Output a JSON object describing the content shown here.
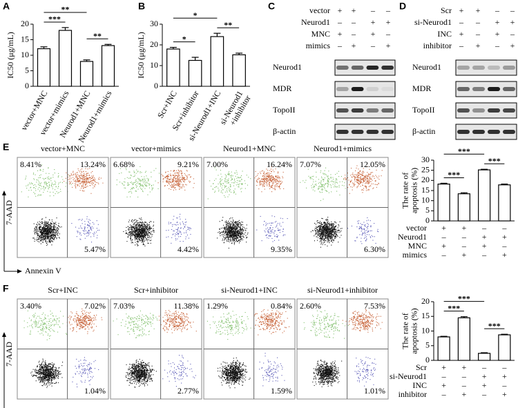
{
  "chart_data": [
    {
      "type": "bar",
      "letter": "A",
      "y_label": [
        "IC50 (μg/mL)"
      ],
      "categories": [
        "vector+MNC",
        "vector+mimics",
        "Neurod1+MNC",
        "Neurod1+mimics"
      ],
      "values": [
        12.1,
        18.0,
        8.0,
        13.1
      ],
      "errors": [
        0.6,
        0.9,
        0.5,
        0.4
      ],
      "ylim": [
        0,
        20
      ],
      "yticks": [
        0,
        5,
        10,
        15,
        20
      ],
      "comparisons": [
        {
          "between": [
            0,
            1
          ],
          "label": "***"
        },
        {
          "between": [
            2,
            3
          ],
          "label": "**"
        },
        {
          "between": [
            0,
            2
          ],
          "label": "**"
        }
      ]
    },
    {
      "type": "bar",
      "letter": "B",
      "y_label": [
        "IC50 (μg/mL)"
      ],
      "categories": [
        "Scr+INC",
        "Scr+inhibitor",
        "si-Neurod1+INC",
        "si-Neurod1\n+inhibitor"
      ],
      "values": [
        18.0,
        12.5,
        24.0,
        15.2
      ],
      "errors": [
        0.8,
        1.5,
        1.6,
        0.8
      ],
      "ylim": [
        0,
        30
      ],
      "yticks": [
        0,
        10,
        20,
        30
      ],
      "comparisons": [
        {
          "between": [
            0,
            1
          ],
          "label": "*"
        },
        {
          "between": [
            2,
            3
          ],
          "label": "**"
        },
        {
          "between": [
            0,
            2
          ],
          "label": "*"
        }
      ]
    },
    {
      "type": "bar",
      "y_label": [
        "The rate of",
        "apoptosis (%)"
      ],
      "conditions": [
        {
          "name": "vector",
          "signs": [
            "+",
            "+",
            "–",
            "–"
          ]
        },
        {
          "name": "Neurod1",
          "signs": [
            "–",
            "–",
            "+",
            "+"
          ]
        },
        {
          "name": "MNC",
          "signs": [
            "+",
            "–",
            "+",
            "–"
          ]
        },
        {
          "name": "mimics",
          "signs": [
            "–",
            "+",
            "–",
            "+"
          ]
        }
      ],
      "values": [
        18.2,
        13.4,
        25.2,
        17.8
      ],
      "errors": [
        0.4,
        0.5,
        0.3,
        0.4
      ],
      "ylim": [
        0,
        30
      ],
      "yticks": [
        0,
        5,
        10,
        15,
        20,
        25,
        30
      ],
      "comparisons": [
        {
          "between": [
            0,
            1
          ],
          "label": "***"
        },
        {
          "between": [
            2,
            3
          ],
          "label": "***"
        },
        {
          "between": [
            0,
            2
          ],
          "label": "***"
        }
      ]
    },
    {
      "type": "bar",
      "y_label": [
        "The rate of",
        "apoptosis (%)"
      ],
      "conditions": [
        {
          "name": "Scr",
          "signs": [
            "+",
            "+",
            "–",
            "–"
          ]
        },
        {
          "name": "si-Neurod1",
          "signs": [
            "–",
            "–",
            "+",
            "+"
          ]
        },
        {
          "name": "INC",
          "signs": [
            "+",
            "–",
            "+",
            "–"
          ]
        },
        {
          "name": "inhibitor",
          "signs": [
            "–",
            "+",
            "–",
            "+"
          ]
        }
      ],
      "values": [
        8.0,
        14.5,
        2.4,
        8.7
      ],
      "errors": [
        0.2,
        0.4,
        0.2,
        0.2
      ],
      "ylim": [
        0,
        20
      ],
      "yticks": [
        0,
        5,
        10,
        15,
        20
      ],
      "comparisons": [
        {
          "between": [
            0,
            1
          ],
          "label": "***"
        },
        {
          "between": [
            2,
            3
          ],
          "label": "***"
        },
        {
          "between": [
            0,
            2
          ],
          "label": "***"
        }
      ]
    }
  ],
  "blots": [
    {
      "letter": "C",
      "conditions": [
        {
          "name": "vector",
          "signs": [
            "+",
            "+",
            "–",
            "–"
          ]
        },
        {
          "name": "Neurod1",
          "signs": [
            "–",
            "–",
            "+",
            "+"
          ]
        },
        {
          "name": "MNC",
          "signs": [
            "+",
            "–",
            "+",
            "–"
          ]
        },
        {
          "name": "mimics",
          "signs": [
            "–",
            "+",
            "–",
            "+"
          ]
        }
      ],
      "proteins": [
        "Neurod1",
        "MDR",
        "TopoII",
        "β-actin"
      ]
    },
    {
      "letter": "D",
      "conditions": [
        {
          "name": "Scr",
          "signs": [
            "+",
            "+",
            "–",
            "–"
          ]
        },
        {
          "name": "si-Neurod1",
          "signs": [
            "–",
            "–",
            "+",
            "+"
          ]
        },
        {
          "name": "INC",
          "signs": [
            "+",
            "–",
            "+",
            "–"
          ]
        },
        {
          "name": "inhibitor",
          "signs": [
            "–",
            "+",
            "–",
            "+"
          ]
        }
      ],
      "proteins": [
        "Neurod1",
        "MDR",
        "TopoII",
        "β-actin"
      ]
    }
  ],
  "flow": [
    {
      "letter": "E",
      "y_axis": "7-AAD",
      "x_axis": "Annexin V",
      "plots": [
        {
          "title": "vector+MNC",
          "upper_left": "8.41%",
          "upper_right": "13.24%",
          "lower_right": "5.47%"
        },
        {
          "title": "vector+mimics",
          "upper_left": "6.68%",
          "upper_right": "9.21%",
          "lower_right": "4.42%"
        },
        {
          "title": "Neurod1+MNC",
          "upper_left": "7.00%",
          "upper_right": "16.24%",
          "lower_right": "9.35%"
        },
        {
          "title": "Neurod1+mimics",
          "upper_left": "7.07%",
          "upper_right": "12.05%",
          "lower_right": "6.30%"
        }
      ]
    },
    {
      "letter": "F",
      "y_axis": "7-AAD",
      "x_axis": "Annexin V",
      "plots": [
        {
          "title": "Scr+INC",
          "upper_left": "3.40%",
          "upper_right": "7.02%",
          "lower_right": "1.04%"
        },
        {
          "title": "Scr+inhibitor",
          "upper_left": "7.03%",
          "upper_right": "11.38%",
          "lower_right": "2.77%"
        },
        {
          "title": "si-Neurod1+INC",
          "upper_left": "1.29%",
          "upper_right": "0.84%",
          "lower_right": "1.59%"
        },
        {
          "title": "si-Neurod1+inhibitor",
          "upper_left": "2.60%",
          "upper_right": "7.53%",
          "lower_right": "1.01%"
        }
      ]
    }
  ]
}
